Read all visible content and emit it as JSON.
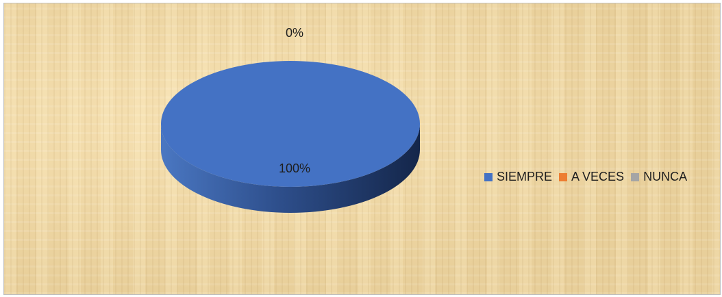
{
  "chart_data": {
    "type": "pie",
    "categories": [
      "SIEMPRE",
      "A VECES",
      "NUNCA"
    ],
    "values": [
      100,
      0,
      0
    ],
    "data_labels": [
      "100%",
      "0%",
      "0%"
    ],
    "colors": [
      "#4472c4",
      "#ed7d31",
      "#a5a5a5"
    ],
    "style": "3d",
    "legend_position": "right"
  }
}
